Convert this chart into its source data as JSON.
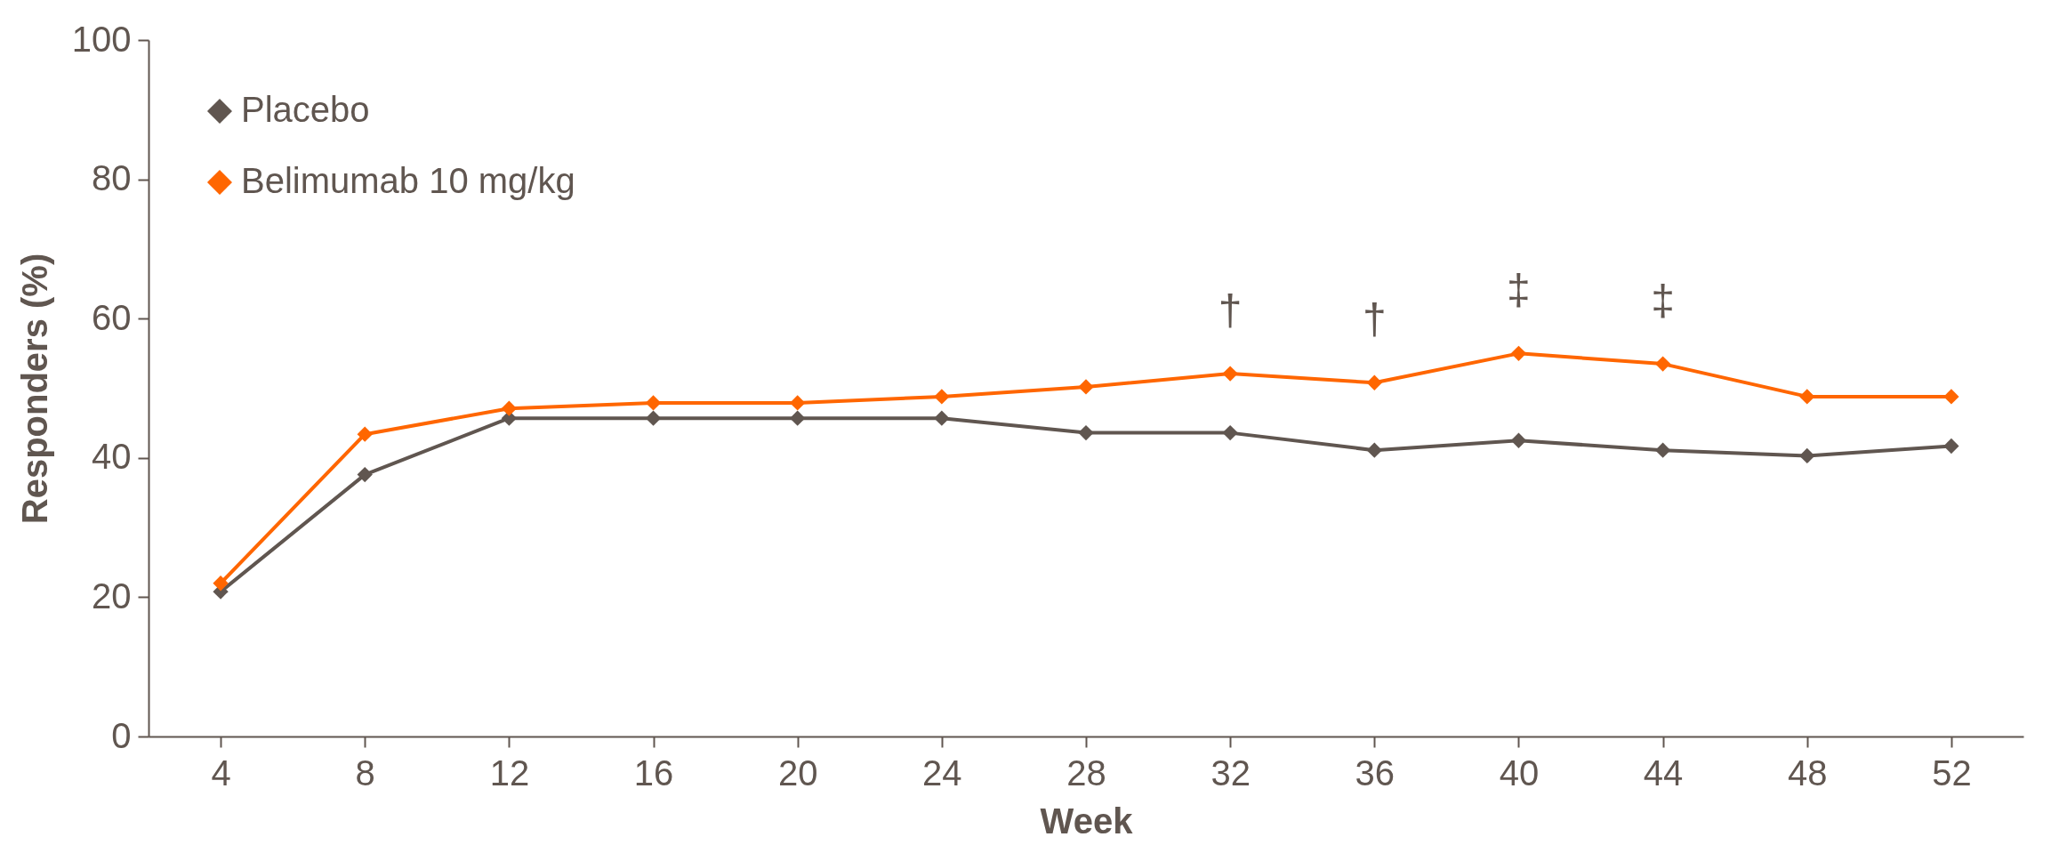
{
  "chart_data": {
    "type": "line",
    "xlabel": "Week",
    "ylabel": "Responders (%)",
    "x": [
      4,
      8,
      12,
      16,
      20,
      24,
      28,
      32,
      36,
      40,
      44,
      48,
      52
    ],
    "series": [
      {
        "name": "Placebo",
        "color": "#605650",
        "values": [
          20.8,
          37.6,
          45.7,
          45.7,
          45.7,
          45.7,
          43.6,
          43.6,
          41.1,
          42.5,
          41.1,
          40.3,
          41.7
        ]
      },
      {
        "name": "Belimumab 10 mg/kg",
        "color": "#ff6600",
        "values": [
          22.0,
          43.4,
          47.1,
          47.9,
          47.9,
          48.8,
          50.2,
          52.1,
          50.8,
          55.0,
          53.5,
          48.8,
          48.8
        ]
      }
    ],
    "xlim": [
      2,
      54
    ],
    "xticks": [
      4,
      8,
      12,
      16,
      20,
      24,
      28,
      32,
      36,
      40,
      44,
      48,
      52
    ],
    "ylim": [
      0,
      100
    ],
    "yticks": [
      0,
      20,
      40,
      60,
      80,
      100
    ],
    "marker": "diamond",
    "line_style": "solid",
    "legend": "top left",
    "grid": false,
    "annotations": [
      {
        "text": "†",
        "x": 32,
        "y": 52.1
      },
      {
        "text": "†",
        "x": 36,
        "y": 50.8
      },
      {
        "text": "‡",
        "x": 40,
        "y": 55.0
      },
      {
        "text": "‡",
        "x": 44,
        "y": 53.5
      }
    ]
  }
}
